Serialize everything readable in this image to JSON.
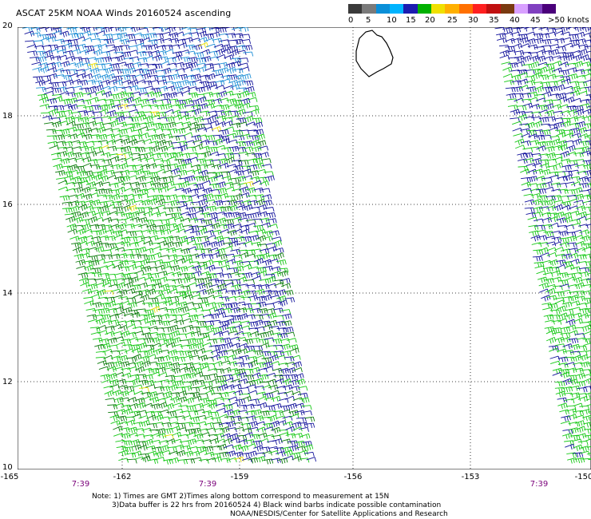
{
  "title": "ASCAT 25KM NOAA Winds 20160524 ascending",
  "colorbar": {
    "colors": [
      "#3a3a3a",
      "#7a7a7a",
      "#0a8fd8",
      "#00b4ff",
      "#1c1cb0",
      "#00b000",
      "#f0e000",
      "#ffb000",
      "#ff7000",
      "#ff2020",
      "#c01010",
      "#7a3a10",
      "#d8a0ff",
      "#8040c0",
      "#4a007a"
    ],
    "labels": [
      "0",
      "5",
      "10",
      "15",
      "20",
      "25",
      "30",
      "35",
      "40",
      "45",
      ">50 knots"
    ],
    "unit": "knots"
  },
  "axes": {
    "lat_ticks": [
      "20",
      "18",
      "16",
      "14",
      "12",
      "10"
    ],
    "lon_ticks": [
      "-165",
      "-162",
      "-159",
      "-156",
      "-153",
      "-150"
    ]
  },
  "pass_times": [
    "7:39",
    "7:39",
    "7:39"
  ],
  "footer": {
    "line1": "Note: 1) Times are GMT 2)Times along bottom correspond to measurement at 15N",
    "line2": "3)Data buffer is 22 hrs from 20160524 4) Black wind barbs indicate possible contamination",
    "line3": "NOAA/NESDIS/Center for Satellite Applications and Research"
  },
  "legend_colors": {
    "low": "#1e8fd6",
    "mid": "#10109a",
    "high": "#14c814",
    "dark_green": "#0a7a0a",
    "yellow": "#e8e000"
  }
}
